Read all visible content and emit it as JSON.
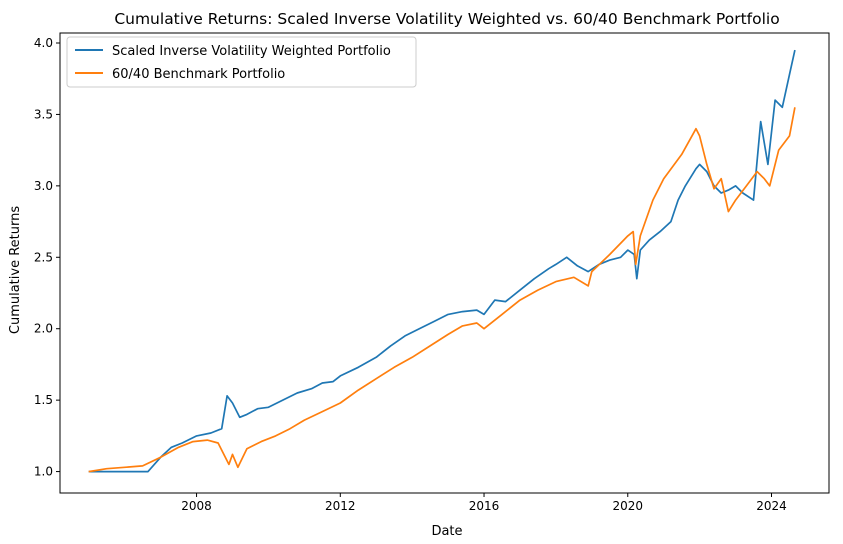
{
  "chart_data": {
    "type": "line",
    "title": "Cumulative Returns: Scaled Inverse Volatility Weighted vs. 60/40 Benchmark Portfolio",
    "xlabel": "Date",
    "ylabel": "Cumulative Returns",
    "xlim": [
      2004.2,
      2025.6
    ],
    "ylim": [
      0.85,
      4.07
    ],
    "x_ticks": [
      2008,
      2012,
      2016,
      2020,
      2024
    ],
    "y_ticks": [
      1.0,
      1.5,
      2.0,
      2.5,
      3.0,
      3.5,
      4.0
    ],
    "y_tick_labels": [
      "1.0",
      "1.5",
      "2.0",
      "2.5",
      "3.0",
      "3.5",
      "4.0"
    ],
    "grid": false,
    "legend_position": "top-left",
    "series": [
      {
        "name": "Scaled Inverse Volatility Weighted Portfolio",
        "color": "#1f77b4",
        "x": [
          2005.0,
          2005.5,
          2006.0,
          2006.5,
          2006.65,
          2007.0,
          2007.3,
          2007.6,
          2008.0,
          2008.4,
          2008.7,
          2008.85,
          2009.0,
          2009.2,
          2009.4,
          2009.7,
          2010.0,
          2010.4,
          2010.8,
          2011.2,
          2011.5,
          2011.8,
          2012.0,
          2012.5,
          2013.0,
          2013.4,
          2013.8,
          2014.2,
          2014.6,
          2015.0,
          2015.4,
          2015.8,
          2016.0,
          2016.3,
          2016.6,
          2017.0,
          2017.4,
          2017.8,
          2018.0,
          2018.3,
          2018.6,
          2018.9,
          2019.2,
          2019.5,
          2019.8,
          2020.0,
          2020.18,
          2020.25,
          2020.35,
          2020.6,
          2020.9,
          2021.2,
          2021.4,
          2021.6,
          2021.9,
          2022.0,
          2022.2,
          2022.4,
          2022.6,
          2022.8,
          2023.0,
          2023.2,
          2023.5,
          2023.7,
          2023.9,
          2024.1,
          2024.3,
          2024.5,
          2024.65
        ],
        "values": [
          1.0,
          1.0,
          1.0,
          1.0,
          1.0,
          1.1,
          1.17,
          1.2,
          1.25,
          1.27,
          1.3,
          1.53,
          1.48,
          1.38,
          1.4,
          1.44,
          1.45,
          1.5,
          1.55,
          1.58,
          1.62,
          1.63,
          1.67,
          1.73,
          1.8,
          1.88,
          1.95,
          2.0,
          2.05,
          2.1,
          2.12,
          2.13,
          2.1,
          2.2,
          2.19,
          2.27,
          2.35,
          2.42,
          2.45,
          2.5,
          2.44,
          2.4,
          2.45,
          2.48,
          2.5,
          2.55,
          2.52,
          2.35,
          2.55,
          2.62,
          2.68,
          2.75,
          2.9,
          3.0,
          3.12,
          3.15,
          3.1,
          3.0,
          2.95,
          2.97,
          3.0,
          2.95,
          2.9,
          3.45,
          3.15,
          3.6,
          3.55,
          3.78,
          3.95
        ]
      },
      {
        "name": "60/40 Benchmark Portfolio",
        "color": "#ff7f0e",
        "x": [
          2005.0,
          2005.5,
          2006.0,
          2006.5,
          2007.0,
          2007.5,
          2007.9,
          2008.3,
          2008.6,
          2008.8,
          2008.9,
          2009.0,
          2009.15,
          2009.4,
          2009.8,
          2010.2,
          2010.6,
          2011.0,
          2011.5,
          2012.0,
          2012.5,
          2013.0,
          2013.5,
          2014.0,
          2014.5,
          2015.0,
          2015.4,
          2015.8,
          2016.0,
          2016.5,
          2017.0,
          2017.5,
          2018.0,
          2018.5,
          2018.9,
          2019.0,
          2019.5,
          2020.0,
          2020.15,
          2020.22,
          2020.35,
          2020.7,
          2021.0,
          2021.5,
          2021.9,
          2022.0,
          2022.2,
          2022.4,
          2022.6,
          2022.8,
          2023.0,
          2023.3,
          2023.6,
          2023.8,
          2023.95,
          2024.2,
          2024.5,
          2024.65
        ],
        "values": [
          1.0,
          1.02,
          1.03,
          1.04,
          1.1,
          1.17,
          1.21,
          1.22,
          1.2,
          1.1,
          1.05,
          1.12,
          1.03,
          1.16,
          1.21,
          1.25,
          1.3,
          1.36,
          1.42,
          1.48,
          1.57,
          1.65,
          1.73,
          1.8,
          1.88,
          1.96,
          2.02,
          2.04,
          2.0,
          2.1,
          2.2,
          2.27,
          2.33,
          2.36,
          2.3,
          2.4,
          2.52,
          2.65,
          2.68,
          2.45,
          2.65,
          2.9,
          3.05,
          3.22,
          3.4,
          3.35,
          3.15,
          2.98,
          3.05,
          2.82,
          2.9,
          3.0,
          3.1,
          3.05,
          3.0,
          3.25,
          3.35,
          3.55
        ]
      }
    ]
  }
}
